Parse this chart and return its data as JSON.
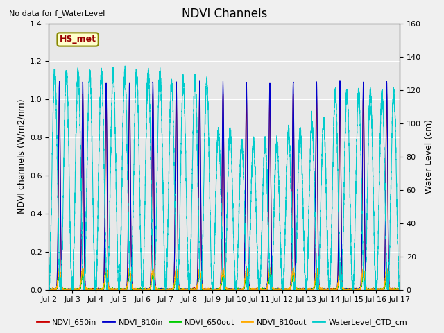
{
  "title": "NDVI Channels",
  "top_left_text": "No data for f_WaterLevel",
  "annotation_text": "HS_met",
  "ylabel_left": "NDVI channels (W/m2/nm)",
  "ylabel_right": "Water Level (cm)",
  "ylim_left": [
    0,
    1.4
  ],
  "ylim_right": [
    0,
    160
  ],
  "yticks_left": [
    0.0,
    0.2,
    0.4,
    0.6,
    0.8,
    1.0,
    1.2,
    1.4
  ],
  "yticks_right": [
    0,
    20,
    40,
    60,
    80,
    100,
    120,
    140,
    160
  ],
  "xtick_labels": [
    "Jul 2",
    "Jul 3",
    "Jul 4",
    "Jul 5",
    "Jul 6",
    "Jul 7",
    "Jul 8",
    "Jul 9",
    "Jul 10",
    "Jul 11",
    "Jul 12",
    "Jul 13",
    "Jul 14",
    "Jul 15",
    "Jul 16",
    "Jul 17"
  ],
  "xtick_positions": [
    2,
    3,
    4,
    5,
    6,
    7,
    8,
    9,
    10,
    11,
    12,
    13,
    14,
    15,
    16,
    17
  ],
  "xlim": [
    2,
    17
  ],
  "colors": {
    "NDVI_650in": "#cc0000",
    "NDVI_810in": "#0000cc",
    "NDVI_650out": "#00cc00",
    "NDVI_810out": "#ffaa00",
    "WaterLevel_CTD_cm": "#00cccc"
  },
  "background_color": "#f0f0f0",
  "plot_bg_color": "#e8e8e8",
  "grid_color": "#ffffff",
  "figsize": [
    6.4,
    4.8
  ],
  "dpi": 100
}
